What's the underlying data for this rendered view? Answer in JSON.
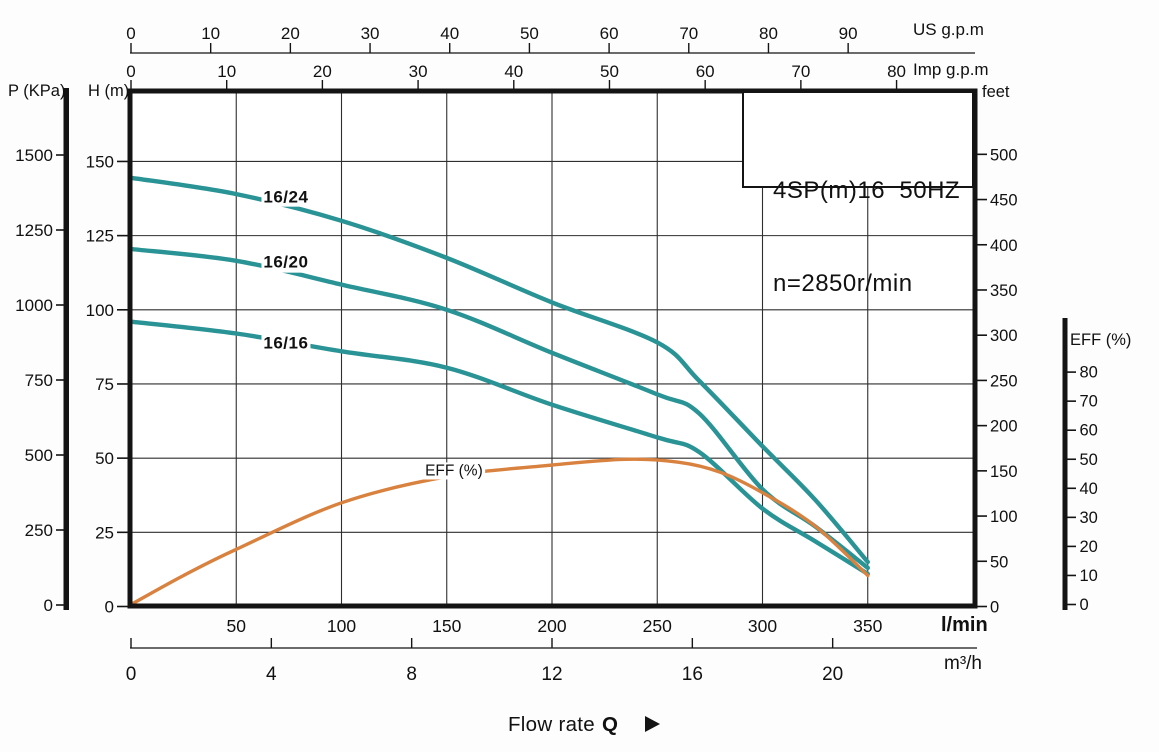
{
  "header": {
    "title_line1": "4SP(m)16  50HZ",
    "title_line2": "n=2850r/min"
  },
  "labels": {
    "p_axis": "P (KPa)",
    "h_axis": "H (m)",
    "us_axis": "US g.p.m",
    "imp_axis": "Imp g.p.m",
    "feet_axis": "feet",
    "eff_axis": "EFF (%)",
    "lmin_unit": "l/min",
    "m3h_unit": "m³/h",
    "flow_rate": "Flow rate",
    "flow_q": "Q"
  },
  "colors": {
    "curve_teal": "#2a9396",
    "curve_orange": "#d9823f",
    "axis_ink": "#141414",
    "grid_ink": "#2f2f2f"
  },
  "chart_data": {
    "type": "line",
    "title": "4SP(m)16  50HZ n=2850r/min",
    "xlabel": "Flow rate Q",
    "grid": "on",
    "axes": {
      "x_lmin": {
        "unit": "l/min",
        "ticks": [
          50,
          100,
          150,
          200,
          250,
          300,
          350
        ],
        "range": [
          0,
          401
        ],
        "grid_every": 50
      },
      "x_m3h": {
        "unit": "m³/h",
        "ticks": [
          0,
          4,
          8,
          12,
          16,
          20
        ]
      },
      "x_us_gpm": {
        "unit": "US g.p.m",
        "ticks": [
          0,
          10,
          20,
          30,
          40,
          50,
          60,
          70,
          80,
          90
        ]
      },
      "x_imp_gpm": {
        "unit": "Imp g.p.m",
        "ticks": [
          0,
          10,
          20,
          30,
          40,
          50,
          60,
          70,
          80
        ]
      },
      "y_h_m": {
        "unit": "H (m)",
        "ticks": [
          0,
          25,
          50,
          75,
          100,
          125,
          150
        ],
        "range": [
          0,
          173
        ],
        "grid_every": 25
      },
      "y_p_kpa": {
        "unit": "P (KPa)",
        "ticks": [
          0,
          250,
          500,
          750,
          1000,
          1250,
          1500
        ]
      },
      "y_feet": {
        "unit": "feet",
        "ticks": [
          0,
          50,
          100,
          150,
          200,
          250,
          300,
          350,
          400,
          450,
          500
        ]
      },
      "y_eff": {
        "unit": "EFF (%)",
        "ticks": [
          0,
          10,
          20,
          30,
          40,
          50,
          60,
          70,
          80
        ],
        "range": [
          0,
          98
        ]
      }
    },
    "series": [
      {
        "name": "16/24",
        "axis": "h",
        "color": "#2a9396",
        "label_at": [
          73.6,
          137.8
        ],
        "points": [
          [
            0,
            144.5
          ],
          [
            50,
            139
          ],
          [
            100,
            130
          ],
          [
            150,
            117.5
          ],
          [
            200,
            102.5
          ],
          [
            250,
            89
          ],
          [
            270,
            76
          ],
          [
            300,
            54
          ],
          [
            325,
            36
          ],
          [
            350,
            15
          ]
        ]
      },
      {
        "name": "16/20",
        "axis": "h",
        "color": "#2a9396",
        "label_at": [
          73.6,
          115.8
        ],
        "points": [
          [
            0,
            120.5
          ],
          [
            50,
            116.5
          ],
          [
            100,
            108.5
          ],
          [
            150,
            100
          ],
          [
            200,
            85.5
          ],
          [
            250,
            71.5
          ],
          [
            270,
            65
          ],
          [
            300,
            39.5
          ],
          [
            325,
            27
          ],
          [
            350,
            13
          ]
        ]
      },
      {
        "name": "16/16",
        "axis": "h",
        "color": "#2a9396",
        "label_at": [
          73.6,
          88.6
        ],
        "points": [
          [
            0,
            96
          ],
          [
            50,
            92
          ],
          [
            100,
            86
          ],
          [
            150,
            80.5
          ],
          [
            200,
            68
          ],
          [
            250,
            57
          ],
          [
            270,
            52
          ],
          [
            300,
            33
          ],
          [
            325,
            22
          ],
          [
            350,
            11
          ]
        ]
      },
      {
        "name": "EFF (%)",
        "axis": "eff",
        "color": "#d9823f",
        "label_at": [
          153.4,
          46
        ],
        "points": [
          [
            0,
            0
          ],
          [
            25,
            10
          ],
          [
            50,
            19
          ],
          [
            100,
            35
          ],
          [
            150,
            44
          ],
          [
            200,
            48
          ],
          [
            235,
            50
          ],
          [
            260,
            49
          ],
          [
            280,
            45.5
          ],
          [
            300,
            38.5
          ],
          [
            325,
            27
          ],
          [
            350,
            10
          ]
        ]
      }
    ]
  }
}
